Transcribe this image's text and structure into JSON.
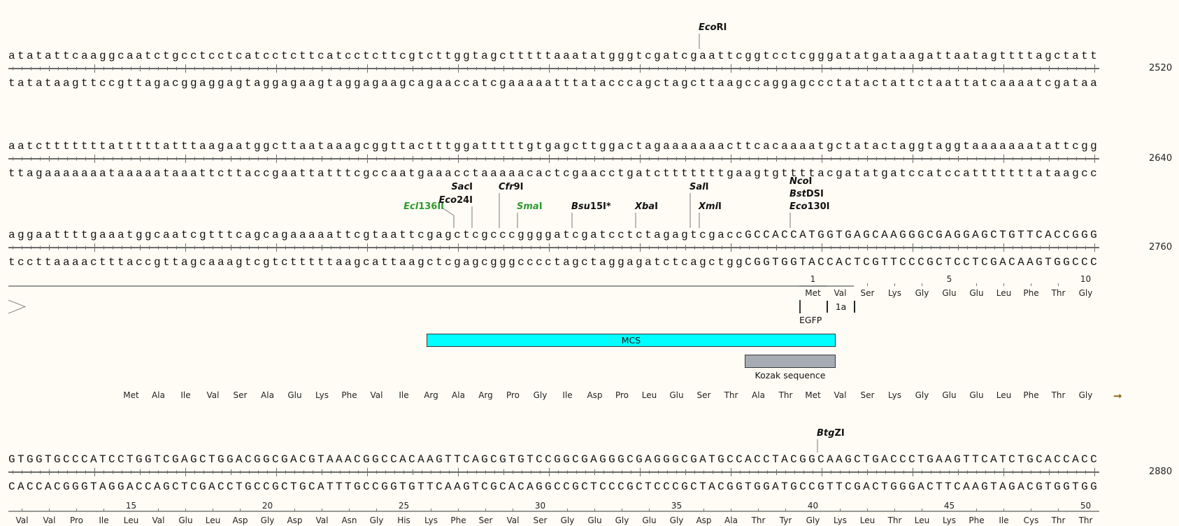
{
  "colors": {
    "background": "#fffcf5",
    "ruler": "#6b6b6b",
    "egfp": "#00ff1a",
    "mcs": "#00ffff",
    "kozak": "#a7acb4",
    "orf": "#ffd27f",
    "enzyme_green": "#2e9a2e",
    "arrow": "#7a5a1a"
  },
  "lines": [
    {
      "start": 2401,
      "end_label": "2520",
      "top": "atatattcaaggcaatctgcctcctcatcctcttcatcctcttcgtcttggtagctttttaaatatgggtcgatcgaattcggtcctcgggatatgataagattaatagttttagctatt",
      "bottom": "tatataagttccgttagacggaggagtaggagaagtaggagaagcagaaccatcgaaaaatttatacccagctagcttaagccaggagccctatactattctaattatcaaaatcgataa"
    },
    {
      "start": 2521,
      "end_label": "2640",
      "top": "aatctttttttatttttatttaagaatggcttaataaagcggttactttggatttttgtgagcttggactagaaaaaaacttcacaaaatgctatactaggtaggtaaaaaaatattcgg",
      "bottom": "ttagaaaaaaataaaaataaattcttaccgaattatttcgccaatgaaacctaaaaacactcgaacctgatctttttttgaagtgttttacgatatgatccatccatttttttataagcc"
    },
    {
      "start": 2641,
      "end_label": "2760",
      "top": "aggaattttgaaatggcaatcgtttcagcagaaaaattcgtaattcgagctcgcccggggatcgatcctctagagtcgaccGCCACCATGGTGAGCAAGGGCGAGGAGCTGTTCACCGGG",
      "bottom": "tccttaaaactttaccgttagcaaagtcgtctttttaagcattaagctcgagcgggcccctagctaggagatctcagctggCGGTGGTACCACTCGTTCCCGCTCCTCGACAAGTGGCCC"
    },
    {
      "start": 2761,
      "end_label": "2880",
      "top": "GTGGTGCCCATCCTGGTCGAGCTGGACGGCGACGTAAACGGCCACAAGTTCAGCGTGTCCGGCGAGGGCGAGGGCGATGCCACCTACGGCAAGCTGACCCTGAAGTTCATCTGCACCACC",
      "bottom": "CACCACGGGTAGGACCAGCTCGACCTGCCGCTGCATTTGCCGGTGTTCAAGTCGCACAGGCCGCTCCCGCTCCCGCTACGGTGGATGCCGTTCGACTGGGACTTCAAGTAGACGTGGTGG"
    }
  ],
  "enzymes": [
    {
      "italic": "Eco",
      "roman": "RI",
      "cut": 2476,
      "color": "#111111"
    },
    {
      "italic": "Ecl",
      "roman": "136II",
      "cut": 2689,
      "color": "#2e9a2e"
    },
    {
      "italic": "Sac",
      "roman": "I",
      "cut": 2691,
      "color": "#111111"
    },
    {
      "italic": "Eco",
      "roman": "24I",
      "cut": 2691,
      "color": "#111111"
    },
    {
      "italic": "Cfr",
      "roman": "9I",
      "cut": 2694,
      "color": "#111111"
    },
    {
      "italic": "Sma",
      "roman": "I",
      "cut": 2696,
      "color": "#2e9a2e"
    },
    {
      "italic": "Bsu",
      "roman": "15I*",
      "cut": 2702,
      "color": "#111111"
    },
    {
      "italic": "Xba",
      "roman": "I",
      "cut": 2709,
      "color": "#111111"
    },
    {
      "italic": "Sal",
      "roman": "I",
      "cut": 2715,
      "color": "#111111"
    },
    {
      "italic": "Xmi",
      "roman": "I",
      "cut": 2716,
      "color": "#111111"
    },
    {
      "italic": "Nco",
      "roman": "I",
      "cut": 2726,
      "color": "#111111"
    },
    {
      "italic": "Bst",
      "roman": "DSI",
      "cut": 2726,
      "color": "#111111"
    },
    {
      "italic": "Eco",
      "roman": "130I",
      "cut": 2726,
      "color": "#111111"
    },
    {
      "italic": "Btg",
      "roman": "ZI",
      "cut": 2849,
      "color": "#111111"
    }
  ],
  "egfp": {
    "label": "EGFP",
    "start": 2728,
    "end": 2760,
    "insert_label": "1a",
    "codon_numbers": [
      "1",
      "",
      "",
      "",
      "5",
      "",
      "",
      "",
      "",
      "10"
    ],
    "aa": [
      "Met",
      "Val",
      "Ser",
      "Lys",
      "Gly",
      "Glu",
      "Glu",
      "Leu",
      "Phe",
      "Thr",
      "Gly"
    ],
    "line4_aa": [
      "Val",
      "Val",
      "Pro",
      "Ile",
      "Leu",
      "Val",
      "Glu",
      "Leu",
      "Asp",
      "Gly",
      "Asp",
      "Val",
      "Asn",
      "Gly",
      "His",
      "Lys",
      "Phe",
      "Ser",
      "Val",
      "Ser",
      "Gly",
      "Glu",
      "Gly",
      "Glu",
      "Gly",
      "Asp",
      "Ala",
      "Thr",
      "Tyr",
      "Gly",
      "Lys",
      "Leu",
      "Thr",
      "Leu",
      "Lys",
      "Phe",
      "Ile",
      "Cys",
      "Thr",
      "Thr"
    ],
    "line4_numbers": [
      "15",
      "20",
      "25",
      "30",
      "35",
      "40",
      "45",
      "50"
    ],
    "line4_first_codon": 11
  },
  "mcs": {
    "label": "MCS",
    "start": 2687,
    "end": 2731
  },
  "kozak": {
    "label": "Kozak sequence",
    "start": 2722,
    "end": 2731
  },
  "orf": {
    "start": 2653,
    "end": 2760,
    "aa": [
      "Met",
      "Ala",
      "Ile",
      "Val",
      "Ser",
      "Ala",
      "Glu",
      "Lys",
      "Phe",
      "Val",
      "Ile",
      "Arg",
      "Ala",
      "Arg",
      "Pro",
      "Gly",
      "Ile",
      "Asp",
      "Pro",
      "Leu",
      "Glu",
      "Ser",
      "Thr",
      "Ala",
      "Thr",
      "Met",
      "Val",
      "Ser",
      "Lys",
      "Gly",
      "Glu",
      "Glu",
      "Leu",
      "Phe",
      "Thr",
      "Gly"
    ],
    "direction_icon": "arrow-right-icon"
  }
}
